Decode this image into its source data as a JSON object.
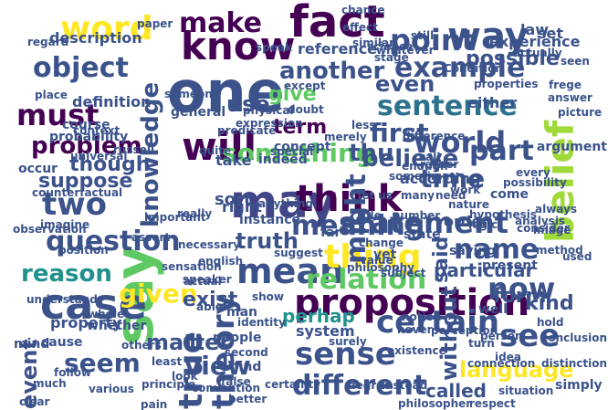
{
  "palette": {
    "dark_purple": "#440154",
    "indigo": "#3b528b",
    "teal": "#21918c",
    "green": "#5ec962",
    "yellow": "#fde725",
    "light_green": "#a0da39",
    "blue_teal": "#2c728e"
  },
  "words": [
    {
      "text": "one",
      "color": "#3b528b",
      "vertical": false
    },
    {
      "text": "say",
      "color": "#5ec962",
      "vertical": true
    },
    {
      "text": "may",
      "color": "#414487",
      "vertical": false
    },
    {
      "text": "case",
      "color": "#3b528b",
      "vertical": false
    },
    {
      "text": "think",
      "color": "#440154",
      "vertical": false
    },
    {
      "text": "will",
      "color": "#440154",
      "vertical": false
    },
    {
      "text": "fact",
      "color": "#440154",
      "vertical": false
    },
    {
      "text": "know",
      "color": "#440154",
      "vertical": false
    },
    {
      "text": "proposition",
      "color": "#440154",
      "vertical": false
    },
    {
      "text": "mean",
      "color": "#3b528b",
      "vertical": false
    },
    {
      "text": "true",
      "color": "#3b528b",
      "vertical": true
    },
    {
      "text": "theory",
      "color": "#3b528b",
      "vertical": true
    },
    {
      "text": "sense",
      "color": "#3b528b",
      "vertical": false
    },
    {
      "text": "thing",
      "color": "#fde725",
      "vertical": false
    },
    {
      "text": "certain",
      "color": "#3b528b",
      "vertical": false
    },
    {
      "text": "statement",
      "color": "#3b528b",
      "vertical": false
    },
    {
      "text": "world",
      "color": "#3b528b",
      "vertical": false
    },
    {
      "text": "time",
      "color": "#3b528b",
      "vertical": false
    },
    {
      "text": "belief",
      "color": "#a0da39",
      "vertical": true
    },
    {
      "text": "sentence",
      "color": "#2c728e",
      "vertical": false
    },
    {
      "text": "language",
      "color": "#fde725",
      "vertical": false
    },
    {
      "text": "word",
      "color": "#fde725",
      "vertical": false
    },
    {
      "text": "question",
      "color": "#3b528b",
      "vertical": false
    },
    {
      "text": "object",
      "color": "#3b528b",
      "vertical": false
    },
    {
      "text": "meaning",
      "color": "#3b528b",
      "vertical": false
    },
    {
      "text": "different",
      "color": "#3b528b",
      "vertical": false
    },
    {
      "text": "part",
      "color": "#3b528b",
      "vertical": false
    },
    {
      "text": "way",
      "color": "#3b528b",
      "vertical": false
    },
    {
      "text": "example",
      "color": "#3b528b",
      "vertical": false
    },
    {
      "text": "point",
      "color": "#3b528b",
      "vertical": false
    },
    {
      "text": "two",
      "color": "#3b528b",
      "vertical": false
    },
    {
      "text": "must",
      "color": "#440154",
      "vertical": false
    },
    {
      "text": "see",
      "color": "#3b528b",
      "vertical": false
    },
    {
      "text": "now",
      "color": "#3b528b",
      "vertical": false
    },
    {
      "text": "name",
      "color": "#3b528b",
      "vertical": false
    },
    {
      "text": "relation",
      "color": "#5ec962",
      "vertical": false
    },
    {
      "text": "something",
      "color": "#5ec962",
      "vertical": false
    },
    {
      "text": "make",
      "color": "#440154",
      "vertical": false
    },
    {
      "text": "first",
      "color": "#3b528b",
      "vertical": false
    },
    {
      "text": "even",
      "color": "#3b528b",
      "vertical": false
    },
    {
      "text": "might",
      "color": "#3b528b",
      "vertical": true
    },
    {
      "text": "knowledge",
      "color": "#3b528b",
      "vertical": true
    },
    {
      "text": "seem",
      "color": "#3b528b",
      "vertical": false
    },
    {
      "text": "view",
      "color": "#3b528b",
      "vertical": false
    },
    {
      "text": "given",
      "color": "#fde725",
      "vertical": false
    },
    {
      "text": "truth",
      "color": "#3b528b",
      "vertical": false
    },
    {
      "text": "reason",
      "color": "#21918c",
      "vertical": false
    },
    {
      "text": "event",
      "color": "#3b528b",
      "vertical": true
    },
    {
      "text": "exist",
      "color": "#3b528b",
      "vertical": false
    },
    {
      "text": "kind",
      "color": "#3b528b",
      "vertical": false
    },
    {
      "text": "form",
      "color": "#3b528b",
      "vertical": false
    },
    {
      "text": "matter",
      "color": "#3b528b",
      "vertical": false
    },
    {
      "text": "problem",
      "color": "#440154",
      "vertical": false
    },
    {
      "text": "suppose",
      "color": "#3b528b",
      "vertical": false
    },
    {
      "text": "another",
      "color": "#3b528b",
      "vertical": false
    },
    {
      "text": "term",
      "color": "#440154",
      "vertical": false
    },
    {
      "text": "believe",
      "color": "#3b528b",
      "vertical": false
    },
    {
      "text": "thu",
      "color": "#3b528b",
      "vertical": false
    },
    {
      "text": "possible",
      "color": "#3b528b",
      "vertical": false
    },
    {
      "text": "use",
      "color": "#3b528b",
      "vertical": false
    },
    {
      "text": "though",
      "color": "#3b528b",
      "vertical": false
    },
    {
      "text": "give",
      "color": "#5ec962",
      "vertical": false
    },
    {
      "text": "particular",
      "color": "#3b528b",
      "vertical": false
    },
    {
      "text": "perhap",
      "color": "#21918c",
      "vertical": false
    },
    {
      "text": "without",
      "color": "#3b528b",
      "vertical": true
    },
    {
      "text": "said",
      "color": "#3b528b",
      "vertical": true
    },
    {
      "text": "called",
      "color": "#3b528b",
      "vertical": false
    },
    {
      "text": "description",
      "color": "#3b528b",
      "vertical": false
    },
    {
      "text": "definition",
      "color": "#3b528b",
      "vertical": false
    },
    {
      "text": "reference",
      "color": "#3b528b",
      "vertical": false
    },
    {
      "text": "experience",
      "color": "#3b528b",
      "vertical": false
    },
    {
      "text": "law",
      "color": "#3b528b",
      "vertical": false
    },
    {
      "text": "still",
      "color": "#3b528b",
      "vertical": false
    },
    {
      "text": "set",
      "color": "#3b528b",
      "vertical": false
    },
    {
      "text": "place",
      "color": "#3b528b",
      "vertical": false
    },
    {
      "text": "occur",
      "color": "#3b528b",
      "vertical": false
    },
    {
      "text": "course",
      "color": "#3b528b",
      "vertical": false
    },
    {
      "text": "general",
      "color": "#3b528b",
      "vertical": false
    },
    {
      "text": "take",
      "color": "#3b528b",
      "vertical": false
    },
    {
      "text": "expression",
      "color": "#3b528b",
      "vertical": false
    },
    {
      "text": "rather",
      "color": "#3b528b",
      "vertical": false
    },
    {
      "text": "either",
      "color": "#3b528b",
      "vertical": false
    },
    {
      "text": "difference",
      "color": "#3b528b",
      "vertical": false
    },
    {
      "text": "indeed",
      "color": "#3b528b",
      "vertical": false
    },
    {
      "text": "concept",
      "color": "#3b528b",
      "vertical": false
    },
    {
      "text": "call",
      "color": "#3b528b",
      "vertical": false
    },
    {
      "text": "according",
      "color": "#3b528b",
      "vertical": false
    },
    {
      "text": "argument",
      "color": "#3b528b",
      "vertical": false
    },
    {
      "text": "every",
      "color": "#3b528b",
      "vertical": false
    },
    {
      "text": "probability",
      "color": "#3b528b",
      "vertical": false
    },
    {
      "text": "russell",
      "color": "#3b528b",
      "vertical": false
    },
    {
      "text": "right",
      "color": "#3b528b",
      "vertical": false
    },
    {
      "text": "really",
      "color": "#3b528b",
      "vertical": false
    },
    {
      "text": "sort",
      "color": "#3b528b",
      "vertical": false
    },
    {
      "text": "instance",
      "color": "#3b528b",
      "vertical": false
    },
    {
      "text": "sensation",
      "color": "#3b528b",
      "vertical": false
    },
    {
      "text": "property",
      "color": "#3b528b",
      "vertical": false
    },
    {
      "text": "whether",
      "color": "#3b528b",
      "vertical": false
    },
    {
      "text": "mind",
      "color": "#3b528b",
      "vertical": false
    },
    {
      "text": "cause",
      "color": "#3b528b",
      "vertical": false
    },
    {
      "text": "people",
      "color": "#3b528b",
      "vertical": false
    },
    {
      "text": "man",
      "color": "#3b528b",
      "vertical": false
    },
    {
      "text": "system",
      "color": "#3b528b",
      "vertical": false
    },
    {
      "text": "follow",
      "color": "#3b528b",
      "vertical": false
    },
    {
      "text": "principle",
      "color": "#3b528b",
      "vertical": false
    },
    {
      "text": "false",
      "color": "#3b528b",
      "vertical": false
    },
    {
      "text": "find",
      "color": "#3b528b",
      "vertical": false
    },
    {
      "text": "well",
      "color": "#3b528b",
      "vertical": false
    },
    {
      "text": "saying",
      "color": "#3b528b",
      "vertical": false
    },
    {
      "text": "present",
      "color": "#3b528b",
      "vertical": false
    },
    {
      "text": "idea",
      "color": "#3b528b",
      "vertical": false
    },
    {
      "text": "image",
      "color": "#3b528b",
      "vertical": false
    },
    {
      "text": "method",
      "color": "#3b528b",
      "vertical": false
    },
    {
      "text": "logic",
      "color": "#3b528b",
      "vertical": false
    },
    {
      "text": "order",
      "color": "#3b528b",
      "vertical": false
    },
    {
      "text": "state",
      "color": "#3b528b",
      "vertical": false
    },
    {
      "text": "yet",
      "color": "#3b528b",
      "vertical": false
    },
    {
      "text": "far",
      "color": "#3b528b",
      "vertical": false
    },
    {
      "text": "rule",
      "color": "#3b528b",
      "vertical": false
    },
    {
      "text": "many",
      "color": "#3b528b",
      "vertical": false
    },
    {
      "text": "number",
      "color": "#3b528b",
      "vertical": false
    },
    {
      "text": "need",
      "color": "#3b528b",
      "vertical": false
    },
    {
      "text": "come",
      "color": "#3b528b",
      "vertical": false
    },
    {
      "text": "hold",
      "color": "#3b528b",
      "vertical": false
    },
    {
      "text": "degree",
      "color": "#3b528b",
      "vertical": false
    },
    {
      "text": "existence",
      "color": "#3b528b",
      "vertical": false
    },
    {
      "text": "simply",
      "color": "#3b528b",
      "vertical": false
    },
    {
      "text": "chance",
      "color": "#3b528b",
      "vertical": false
    },
    {
      "text": "science",
      "color": "#3b528b",
      "vertical": false
    },
    {
      "text": "Condition",
      "color": "#3b528b",
      "vertical": false
    },
    {
      "text": "frege",
      "color": "#3b528b",
      "vertical": false
    },
    {
      "text": "answer",
      "color": "#3b528b",
      "vertical": false
    },
    {
      "text": "someone",
      "color": "#3b528b",
      "vertical": false
    },
    {
      "text": "less",
      "color": "#3b528b",
      "vertical": false
    },
    {
      "text": "merely",
      "color": "#3b528b",
      "vertical": false
    },
    {
      "text": "doubt",
      "color": "#3b528b",
      "vertical": false
    },
    {
      "text": "paper",
      "color": "#3b528b",
      "vertical": false
    },
    {
      "text": "consider",
      "color": "#3b528b",
      "vertical": false
    },
    {
      "text": "change",
      "color": "#3b528b",
      "vertical": false
    },
    {
      "text": "notion",
      "color": "#3b528b",
      "vertical": false
    },
    {
      "text": "nature",
      "color": "#3b528b",
      "vertical": false
    },
    {
      "text": "possibility",
      "color": "#3b528b",
      "vertical": false
    },
    {
      "text": "analysis",
      "color": "#3b528b",
      "vertical": false
    },
    {
      "text": "picture",
      "color": "#3b528b",
      "vertical": false
    },
    {
      "text": "effect",
      "color": "#3b528b",
      "vertical": false
    },
    {
      "text": "speak",
      "color": "#3b528b",
      "vertical": false
    },
    {
      "text": "properties",
      "color": "#3b528b",
      "vertical": false
    },
    {
      "text": "whatever",
      "color": "#3b528b",
      "vertical": false
    },
    {
      "text": "similar",
      "color": "#3b528b",
      "vertical": false
    },
    {
      "text": "stage",
      "color": "#3b528b",
      "vertical": false
    },
    {
      "text": "regard",
      "color": "#3b528b",
      "vertical": false
    },
    {
      "text": "actually",
      "color": "#3b528b",
      "vertical": false
    },
    {
      "text": "seen",
      "color": "#3b528b",
      "vertical": false
    },
    {
      "text": "special",
      "color": "#3b528b",
      "vertical": false
    },
    {
      "text": "context",
      "color": "#3b528b",
      "vertical": false
    },
    {
      "text": "sometime",
      "color": "#3b528b",
      "vertical": false
    },
    {
      "text": "enough",
      "color": "#3b528b",
      "vertical": false
    },
    {
      "text": "english",
      "color": "#3b528b",
      "vertical": false
    },
    {
      "text": "let us",
      "color": "#3b528b",
      "vertical": false
    },
    {
      "text": "quite",
      "color": "#3b528b",
      "vertical": false
    },
    {
      "text": "value",
      "color": "#3b528b",
      "vertical": false
    },
    {
      "text": "hypothesis",
      "color": "#3b528b",
      "vertical": false
    },
    {
      "text": "counterfactual",
      "color": "#3b528b",
      "vertical": false
    },
    {
      "text": "assert",
      "color": "#3b528b",
      "vertical": false
    },
    {
      "text": "imagine",
      "color": "#3b528b",
      "vertical": false
    },
    {
      "text": "observation",
      "color": "#3b528b",
      "vertical": false
    },
    {
      "text": "position",
      "color": "#3b528b",
      "vertical": false
    },
    {
      "text": "understand",
      "color": "#3b528b",
      "vertical": false
    },
    {
      "text": "whole",
      "color": "#3b528b",
      "vertical": false
    },
    {
      "text": "others",
      "color": "#3b528b",
      "vertical": false
    },
    {
      "text": "least",
      "color": "#3b528b",
      "vertical": false
    },
    {
      "text": "look",
      "color": "#3b528b",
      "vertical": false
    },
    {
      "text": "second",
      "color": "#3b528b",
      "vertical": false
    },
    {
      "text": "various",
      "color": "#3b528b",
      "vertical": false
    },
    {
      "text": "clear",
      "color": "#3b528b",
      "vertical": false
    },
    {
      "text": "much",
      "color": "#3b528b",
      "vertical": false
    },
    {
      "text": "pain",
      "color": "#3b528b",
      "vertical": false
    },
    {
      "text": "better",
      "color": "#3b528b",
      "vertical": false
    },
    {
      "text": "certainty",
      "color": "#3b528b",
      "vertical": false
    },
    {
      "text": "never",
      "color": "#3b528b",
      "vertical": false
    },
    {
      "text": "turn",
      "color": "#3b528b",
      "vertical": false
    },
    {
      "text": "connection",
      "color": "#3b528b",
      "vertical": false
    },
    {
      "text": "instead",
      "color": "#3b528b",
      "vertical": false
    },
    {
      "text": "philosopher",
      "color": "#3b528b",
      "vertical": false
    },
    {
      "text": "surely",
      "color": "#3b528b",
      "vertical": false
    },
    {
      "text": "identity",
      "color": "#3b528b",
      "vertical": false
    },
    {
      "text": "convention",
      "color": "#3b528b",
      "vertical": false
    },
    {
      "text": "respect",
      "color": "#3b528b",
      "vertical": false
    },
    {
      "text": "distinction",
      "color": "#3b528b",
      "vertical": false
    },
    {
      "text": "conclusion",
      "color": "#3b528b",
      "vertical": false
    },
    {
      "text": "situation",
      "color": "#3b528b",
      "vertical": false
    },
    {
      "text": "speaker",
      "color": "#3b528b",
      "vertical": false
    },
    {
      "text": "necessary",
      "color": "#3b528b",
      "vertical": false
    },
    {
      "text": "important",
      "color": "#3b528b",
      "vertical": false
    },
    {
      "text": "except",
      "color": "#3b528b",
      "vertical": false
    },
    {
      "text": "physical",
      "color": "#3b528b",
      "vertical": false
    },
    {
      "text": "predicate",
      "color": "#3b528b",
      "vertical": false
    },
    {
      "text": "universal",
      "color": "#3b528b",
      "vertical": false
    },
    {
      "text": "work",
      "color": "#3b528b",
      "vertical": false
    },
    {
      "text": "always",
      "color": "#3b528b",
      "vertical": false
    },
    {
      "text": "used",
      "color": "#3b528b",
      "vertical": false
    },
    {
      "text": "person",
      "color": "#3b528b",
      "vertical": false
    },
    {
      "text": "perception",
      "color": "#3b528b",
      "vertical": false
    },
    {
      "text": "subject",
      "color": "#3b528b",
      "vertical": false
    },
    {
      "text": "philosophy",
      "color": "#3b528b",
      "vertical": false
    },
    {
      "text": "suggest",
      "color": "#3b528b",
      "vertical": false
    },
    {
      "text": "anything",
      "color": "#3b528b",
      "vertical": false
    },
    {
      "text": "actual",
      "color": "#3b528b",
      "vertical": false
    },
    {
      "text": "able",
      "color": "#3b528b",
      "vertical": false
    },
    {
      "text": "show",
      "color": "#3b528b",
      "vertical": false
    },
    {
      "text": "want",
      "color": "#3b528b",
      "vertical": false
    },
    {
      "text": "depend",
      "color": "#3b528b",
      "vertical": false
    }
  ]
}
